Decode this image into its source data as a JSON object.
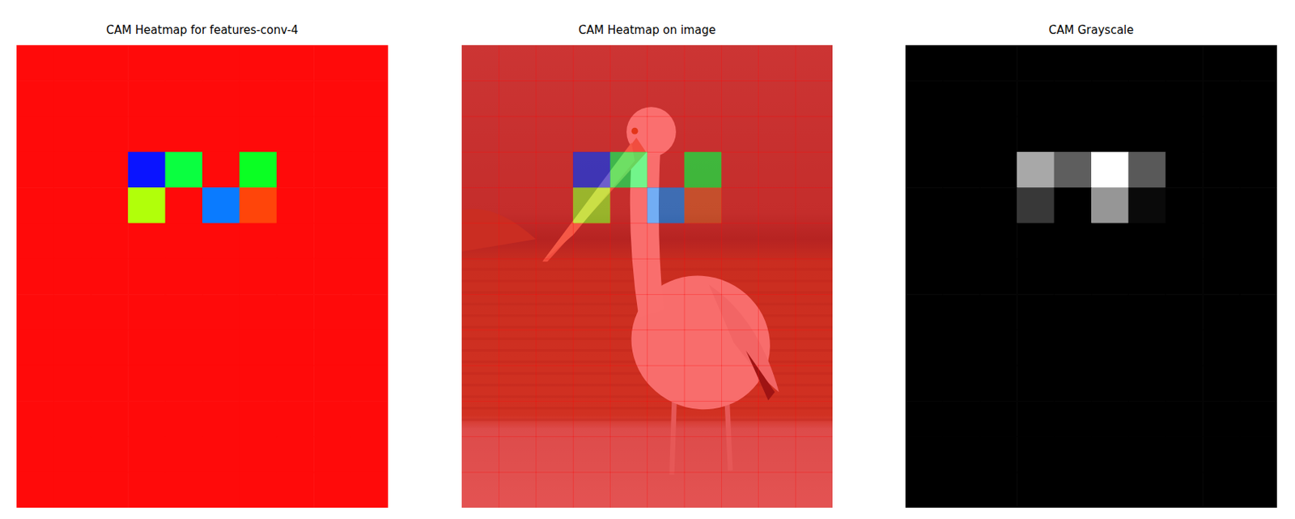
{
  "chart_data": [
    {
      "type": "heatmap",
      "title": "CAM Heatmap for features-conv-4",
      "color": "hsv",
      "tick_labels": false,
      "cells": [
        [
          0,
          0,
          0,
          0,
          0,
          0,
          0,
          0,
          0,
          0
        ],
        [
          0,
          0,
          0,
          0,
          0,
          0,
          0,
          0,
          0,
          0
        ],
        [
          0,
          0,
          0,
          0,
          0,
          0,
          0,
          0,
          0,
          0
        ],
        [
          0,
          0,
          0,
          0.66,
          0.37,
          1.0,
          0.35,
          0,
          0,
          0
        ],
        [
          0,
          0,
          0,
          0.22,
          0,
          0.59,
          0.04,
          0,
          0,
          0
        ],
        [
          0,
          0,
          0,
          0,
          0,
          0,
          0,
          0,
          0,
          0
        ],
        [
          0,
          0,
          0,
          0,
          0,
          0,
          0,
          0,
          0,
          0
        ],
        [
          0,
          0,
          0,
          0,
          0,
          0,
          0,
          0,
          0,
          0
        ],
        [
          0,
          0,
          0,
          0,
          0,
          0,
          0,
          0,
          0,
          0
        ],
        [
          0,
          0,
          0,
          0,
          0,
          0,
          0,
          0,
          0,
          0
        ],
        [
          0,
          0,
          0,
          0,
          0,
          0,
          0,
          0,
          0,
          0
        ],
        [
          0,
          0,
          0,
          0,
          0,
          0,
          0,
          0,
          0,
          0
        ],
        [
          0,
          0,
          0,
          0,
          0,
          0,
          0,
          0,
          0,
          0
        ]
      ]
    },
    {
      "type": "heatmap_overlay",
      "title": "CAM Heatmap on image",
      "color": "hsv",
      "tick_labels": false,
      "cells": [
        [
          0,
          0,
          0,
          0,
          0,
          0,
          0,
          0,
          0,
          0
        ],
        [
          0,
          0,
          0,
          0,
          0,
          0,
          0,
          0,
          0,
          0
        ],
        [
          0,
          0,
          0,
          0,
          0,
          0,
          0,
          0,
          0,
          0
        ],
        [
          0,
          0,
          0,
          0.66,
          0.37,
          1.0,
          0.35,
          0,
          0,
          0
        ],
        [
          0,
          0,
          0,
          0.22,
          0,
          0.59,
          0.04,
          0,
          0,
          0
        ],
        [
          0,
          0,
          0,
          0,
          0,
          0,
          0,
          0,
          0,
          0
        ],
        [
          0,
          0,
          0,
          0,
          0,
          0,
          0,
          0,
          0,
          0
        ],
        [
          0,
          0,
          0,
          0,
          0,
          0,
          0,
          0,
          0,
          0
        ],
        [
          0,
          0,
          0,
          0,
          0,
          0,
          0,
          0,
          0,
          0
        ],
        [
          0,
          0,
          0,
          0,
          0,
          0,
          0,
          0,
          0,
          0
        ],
        [
          0,
          0,
          0,
          0,
          0,
          0,
          0,
          0,
          0,
          0
        ],
        [
          0,
          0,
          0,
          0,
          0,
          0,
          0,
          0,
          0,
          0
        ],
        [
          0,
          0,
          0,
          0,
          0,
          0,
          0,
          0,
          0,
          0
        ]
      ]
    },
    {
      "type": "heatmap",
      "title": "CAM Grayscale",
      "color": "gray",
      "tick_labels": false,
      "cells": [
        [
          0,
          0,
          0,
          0,
          0,
          0,
          0,
          0,
          0,
          0
        ],
        [
          0,
          0,
          0,
          0,
          0,
          0,
          0,
          0,
          0,
          0
        ],
        [
          0,
          0,
          0,
          0,
          0,
          0,
          0,
          0,
          0,
          0
        ],
        [
          0,
          0,
          0,
          0.66,
          0.37,
          1.0,
          0.35,
          0,
          0,
          0
        ],
        [
          0,
          0,
          0,
          0.22,
          0,
          0.59,
          0.04,
          0,
          0,
          0
        ],
        [
          0,
          0,
          0,
          0,
          0,
          0,
          0,
          0,
          0,
          0
        ],
        [
          0,
          0,
          0,
          0,
          0,
          0,
          0,
          0,
          0,
          0
        ],
        [
          0,
          0,
          0,
          0,
          0,
          0,
          0,
          0,
          0,
          0
        ],
        [
          0,
          0,
          0,
          0,
          0,
          0,
          0,
          0,
          0,
          0
        ],
        [
          0,
          0,
          0,
          0,
          0,
          0,
          0,
          0,
          0,
          0
        ],
        [
          0,
          0,
          0,
          0,
          0,
          0,
          0,
          0,
          0,
          0
        ],
        [
          0,
          0,
          0,
          0,
          0,
          0,
          0,
          0,
          0,
          0
        ],
        [
          0,
          0,
          0,
          0,
          0,
          0,
          0,
          0,
          0,
          0
        ]
      ]
    }
  ]
}
